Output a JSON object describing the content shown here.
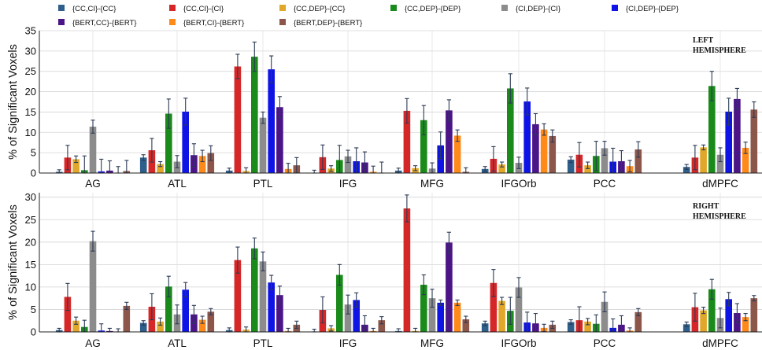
{
  "chart_data": {
    "type": "bar",
    "legend_placement": "top",
    "grid": true,
    "series_legend": [
      {
        "name": "{CC,CI}-{CC}",
        "color": "#2e5f8a"
      },
      {
        "name": "{CC,CI}-{CI}",
        "color": "#d62728"
      },
      {
        "name": "{CC,DEP}-{CC}",
        "color": "#e0a72a"
      },
      {
        "name": "{CC,DEP}-{DEP}",
        "color": "#1a8a1a"
      },
      {
        "name": "{CI,DEP}-{CI}",
        "color": "#8c8c8c"
      },
      {
        "name": "{CI,DEP}-{DEP}",
        "color": "#0f14e6"
      },
      {
        "name": "{BERT,CC}-{BERT}",
        "color": "#4b1587"
      },
      {
        "name": "{BERT,CI}-{BERT}",
        "color": "#ff8a1a"
      },
      {
        "name": "{BERT,DEP}-{BERT}",
        "color": "#8c564b"
      }
    ],
    "panels": [
      {
        "annotation": [
          "LEFT",
          "HEMISPHERE"
        ],
        "ylabel": "% of Significant Voxels",
        "ylim": [
          0,
          35
        ],
        "yticks": [
          0,
          5,
          10,
          15,
          20,
          25,
          30,
          35
        ],
        "categories": [
          "AG",
          "ATL",
          "PTL",
          "IFG",
          "MFG",
          "IFGOrb",
          "PCC",
          "dMPFC"
        ],
        "values": [
          [
            0.3,
            3.8,
            3.4,
            0.7,
            11.4,
            0.4,
            0.6,
            0.1,
            0.5
          ],
          [
            3.8,
            5.6,
            2.2,
            14.6,
            2.8,
            15.1,
            4.4,
            4.2,
            4.9
          ],
          [
            0.6,
            26.2,
            0.5,
            28.6,
            13.6,
            25.5,
            16.2,
            1.0,
            1.9
          ],
          [
            0.1,
            3.9,
            1.1,
            3.2,
            4.1,
            2.9,
            2.6,
            0.3,
            0.1
          ],
          [
            0.6,
            15.3,
            1.2,
            13.0,
            1.1,
            6.8,
            15.4,
            9.2,
            0.3
          ],
          [
            1.0,
            3.5,
            2.1,
            20.8,
            2.5,
            17.6,
            12.0,
            10.7,
            9.1
          ],
          [
            3.3,
            4.5,
            1.9,
            4.2,
            6.1,
            2.8,
            2.9,
            1.7,
            5.8
          ],
          [
            1.5,
            3.8,
            6.3,
            21.4,
            4.5,
            15.1,
            18.2,
            6.2,
            15.6
          ]
        ],
        "errors": [
          [
            0.5,
            3.0,
            0.8,
            3.5,
            1.6,
            3.0,
            2.4,
            1.5,
            2.6
          ],
          [
            0.7,
            2.9,
            0.6,
            3.6,
            1.5,
            3.3,
            2.8,
            1.4,
            1.8
          ],
          [
            0.6,
            3.0,
            0.8,
            3.6,
            1.4,
            3.3,
            2.6,
            1.4,
            1.9
          ],
          [
            0.6,
            3.0,
            0.7,
            3.6,
            1.5,
            3.3,
            2.6,
            1.4,
            2.6
          ],
          [
            0.6,
            3.0,
            0.6,
            3.6,
            1.4,
            3.3,
            2.6,
            1.4,
            1.0
          ],
          [
            0.6,
            3.0,
            0.6,
            3.6,
            1.4,
            3.3,
            2.6,
            1.4,
            1.5
          ],
          [
            0.7,
            3.0,
            0.8,
            3.6,
            1.7,
            3.3,
            2.6,
            1.4,
            1.9
          ],
          [
            0.6,
            3.0,
            0.6,
            3.6,
            1.7,
            3.3,
            2.6,
            1.4,
            1.9
          ]
        ]
      },
      {
        "annotation": [
          "RIGHT",
          "HEMISPHERE"
        ],
        "ylabel": "% of Significant Voxels",
        "ylim": [
          0,
          31
        ],
        "yticks": [
          0,
          5,
          10,
          15,
          20,
          25,
          30
        ],
        "categories": [
          "AG",
          "ATL",
          "PTL",
          "IFG",
          "MFG",
          "IFGOrb",
          "PCC",
          "dMPFC"
        ],
        "values": [
          [
            0.4,
            7.8,
            2.5,
            1.1,
            20.2,
            0.3,
            0.2,
            0.1,
            5.8
          ],
          [
            2.0,
            5.6,
            2.3,
            10.1,
            3.9,
            9.4,
            3.9,
            2.7,
            4.5
          ],
          [
            0.4,
            16.0,
            0.5,
            18.6,
            15.7,
            11.0,
            8.2,
            0.2,
            1.6
          ],
          [
            0.1,
            4.9,
            0.8,
            12.7,
            6.1,
            7.1,
            1.6,
            0.2,
            2.6
          ],
          [
            0.2,
            27.5,
            0.2,
            10.5,
            7.5,
            6.5,
            19.9,
            6.5,
            2.8
          ],
          [
            1.9,
            10.9,
            6.9,
            4.7,
            9.9,
            2.1,
            1.9,
            0.9,
            1.6
          ],
          [
            2.2,
            2.6,
            2.3,
            1.8,
            6.7,
            0.9,
            1.6,
            0.3,
            4.4
          ],
          [
            1.7,
            5.5,
            4.8,
            9.5,
            3.1,
            7.3,
            4.2,
            3.3,
            7.5
          ]
        ],
        "errors": [
          [
            0.4,
            3.0,
            0.8,
            1.5,
            2.2,
            1.5,
            0.6,
            0.6,
            0.8
          ],
          [
            0.5,
            2.9,
            0.8,
            2.3,
            2.1,
            1.6,
            2.0,
            0.8,
            0.7
          ],
          [
            0.5,
            2.9,
            0.6,
            2.3,
            2.1,
            1.6,
            2.0,
            0.6,
            0.8
          ],
          [
            0.5,
            2.9,
            0.6,
            2.3,
            2.1,
            1.6,
            2.0,
            0.6,
            0.8
          ],
          [
            0.5,
            3.0,
            0.6,
            2.2,
            2.0,
            0.6,
            2.3,
            0.6,
            0.7
          ],
          [
            0.5,
            3.0,
            0.8,
            3.0,
            2.2,
            2.3,
            2.2,
            0.8,
            0.8
          ],
          [
            0.5,
            3.0,
            0.7,
            2.0,
            2.2,
            2.0,
            2.0,
            0.6,
            0.8
          ],
          [
            0.5,
            3.1,
            0.7,
            2.2,
            2.2,
            1.5,
            2.1,
            0.8,
            0.6
          ]
        ]
      }
    ]
  }
}
